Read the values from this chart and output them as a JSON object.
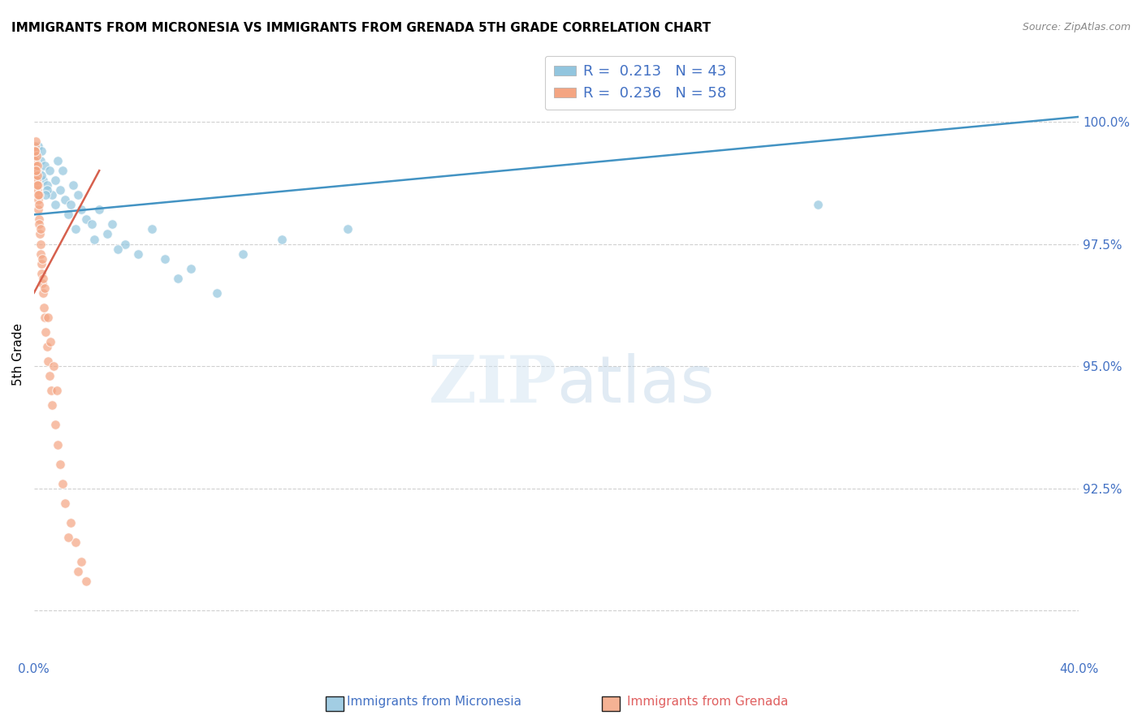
{
  "title": "IMMIGRANTS FROM MICRONESIA VS IMMIGRANTS FROM GRENADA 5TH GRADE CORRELATION CHART",
  "source": "Source: ZipAtlas.com",
  "ylabel": "5th Grade",
  "yticks": [
    90.0,
    92.5,
    95.0,
    97.5,
    100.0
  ],
  "ytick_labels": [
    "",
    "92.5%",
    "95.0%",
    "97.5%",
    "100.0%"
  ],
  "xlim": [
    0.0,
    40.0
  ],
  "ylim": [
    89.0,
    101.5
  ],
  "R_micronesia": 0.213,
  "N_micronesia": 43,
  "R_grenada": 0.236,
  "N_grenada": 58,
  "blue_color": "#92c5de",
  "pink_color": "#f4a582",
  "blue_line_color": "#4393c3",
  "pink_line_color": "#d6604d",
  "scatter_alpha": 0.7,
  "scatter_size": 70,
  "micronesia_x": [
    0.1,
    0.15,
    0.2,
    0.25,
    0.3,
    0.35,
    0.4,
    0.5,
    0.6,
    0.7,
    0.8,
    0.9,
    1.0,
    1.1,
    1.2,
    1.4,
    1.5,
    1.7,
    1.8,
    2.0,
    2.2,
    2.5,
    2.8,
    3.0,
    3.5,
    4.0,
    4.5,
    0.3,
    0.5,
    0.8,
    1.3,
    1.6,
    2.3,
    3.2,
    5.0,
    5.5,
    6.0,
    7.0,
    8.0,
    9.5,
    12.0,
    30.0,
    0.45
  ],
  "micronesia_y": [
    99.3,
    99.5,
    99.0,
    99.2,
    99.4,
    98.8,
    99.1,
    98.7,
    99.0,
    98.5,
    98.8,
    99.2,
    98.6,
    99.0,
    98.4,
    98.3,
    98.7,
    98.5,
    98.2,
    98.0,
    97.9,
    98.2,
    97.7,
    97.9,
    97.5,
    97.3,
    97.8,
    98.9,
    98.6,
    98.3,
    98.1,
    97.8,
    97.6,
    97.4,
    97.2,
    96.8,
    97.0,
    96.5,
    97.3,
    97.6,
    97.8,
    98.3,
    98.5
  ],
  "grenada_x": [
    0.02,
    0.03,
    0.04,
    0.05,
    0.06,
    0.07,
    0.08,
    0.09,
    0.1,
    0.11,
    0.12,
    0.13,
    0.14,
    0.15,
    0.16,
    0.17,
    0.18,
    0.19,
    0.2,
    0.22,
    0.24,
    0.26,
    0.28,
    0.3,
    0.32,
    0.35,
    0.38,
    0.4,
    0.45,
    0.5,
    0.55,
    0.6,
    0.65,
    0.7,
    0.8,
    0.9,
    1.0,
    1.1,
    1.2,
    1.4,
    1.6,
    1.8,
    2.0,
    0.05,
    0.08,
    0.12,
    0.18,
    0.25,
    0.33,
    0.42,
    0.52,
    0.63,
    0.75,
    0.88,
    1.3,
    1.7,
    0.15,
    0.35
  ],
  "grenada_y": [
    99.3,
    99.5,
    99.4,
    99.2,
    99.6,
    99.1,
    98.9,
    99.3,
    99.0,
    98.8,
    99.1,
    98.6,
    98.9,
    98.4,
    98.7,
    98.2,
    98.5,
    98.0,
    97.9,
    97.7,
    97.5,
    97.3,
    97.1,
    96.9,
    96.7,
    96.5,
    96.2,
    96.0,
    95.7,
    95.4,
    95.1,
    94.8,
    94.5,
    94.2,
    93.8,
    93.4,
    93.0,
    92.6,
    92.2,
    91.8,
    91.4,
    91.0,
    90.6,
    99.4,
    99.0,
    98.7,
    98.3,
    97.8,
    97.2,
    96.6,
    96.0,
    95.5,
    95.0,
    94.5,
    91.5,
    90.8,
    98.5,
    96.8
  ]
}
